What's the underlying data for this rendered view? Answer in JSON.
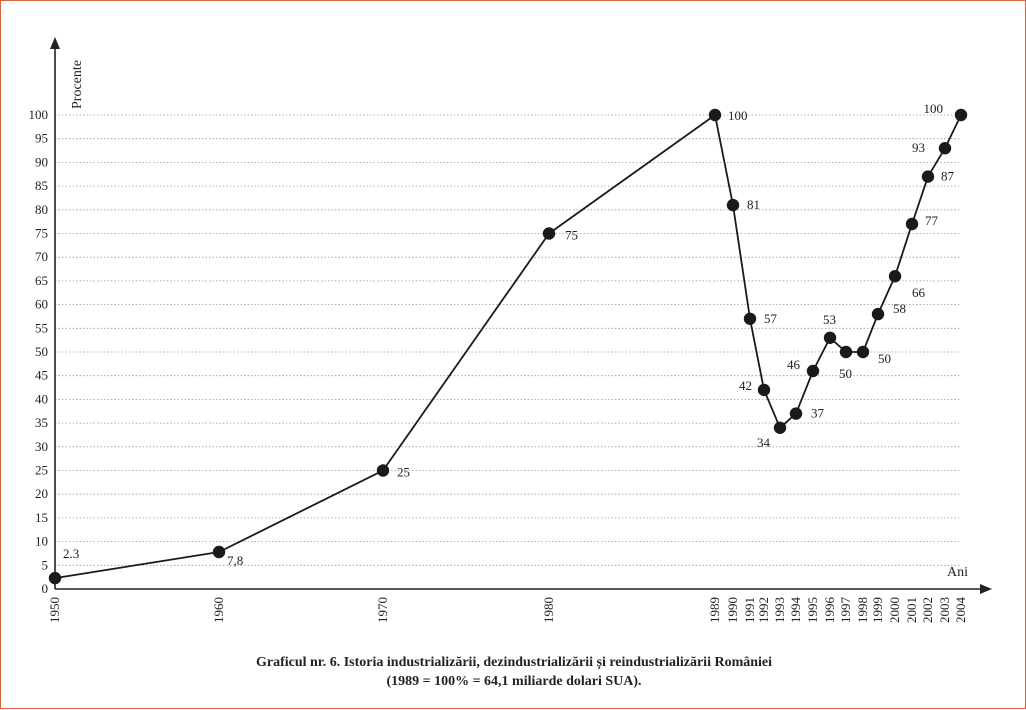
{
  "caption": {
    "line1": "Graficul nr. 6. Istoria industrializării, dezindustrializării și reindustrializării României",
    "line2": "(1989 = 100% = 64,1 miliarde dolari SUA)."
  },
  "chart_data": {
    "type": "line",
    "title": "Graficul nr. 6. Istoria industrializării, dezindustrializării și reindustrializării României",
    "subtitle": "(1989 = 100% = 64,1 miliarde dolari SUA).",
    "xlabel": "Ani",
    "ylabel": "Procente",
    "ylim": [
      0,
      100
    ],
    "yticks": [
      "0",
      "5",
      "10",
      "15",
      "20",
      "25",
      "30",
      "35",
      "40",
      "45",
      "50",
      "55",
      "60",
      "65",
      "70",
      "75",
      "80",
      "85",
      "90",
      "95",
      "100"
    ],
    "grid": true,
    "x": [
      "1950",
      "1960",
      "1970",
      "1980",
      "1989",
      "1990",
      "1991",
      "1992",
      "1993",
      "1994",
      "1995",
      "1996",
      "1997",
      "1998",
      "1999",
      "2000",
      "2001",
      "2002",
      "2003",
      "2004"
    ],
    "series": [
      {
        "values": [
          2.3,
          7.8,
          25,
          75,
          100,
          81,
          57,
          42,
          34,
          37,
          46,
          53,
          50,
          50,
          58,
          66,
          77,
          87,
          93,
          100
        ],
        "labels": [
          "2.3",
          "7,8",
          "25",
          "75",
          "100",
          "81",
          "57",
          "42",
          "34",
          "37",
          "46",
          "53",
          "50",
          "50",
          "58",
          "66",
          "77",
          "87",
          "93",
          "100"
        ]
      }
    ]
  }
}
